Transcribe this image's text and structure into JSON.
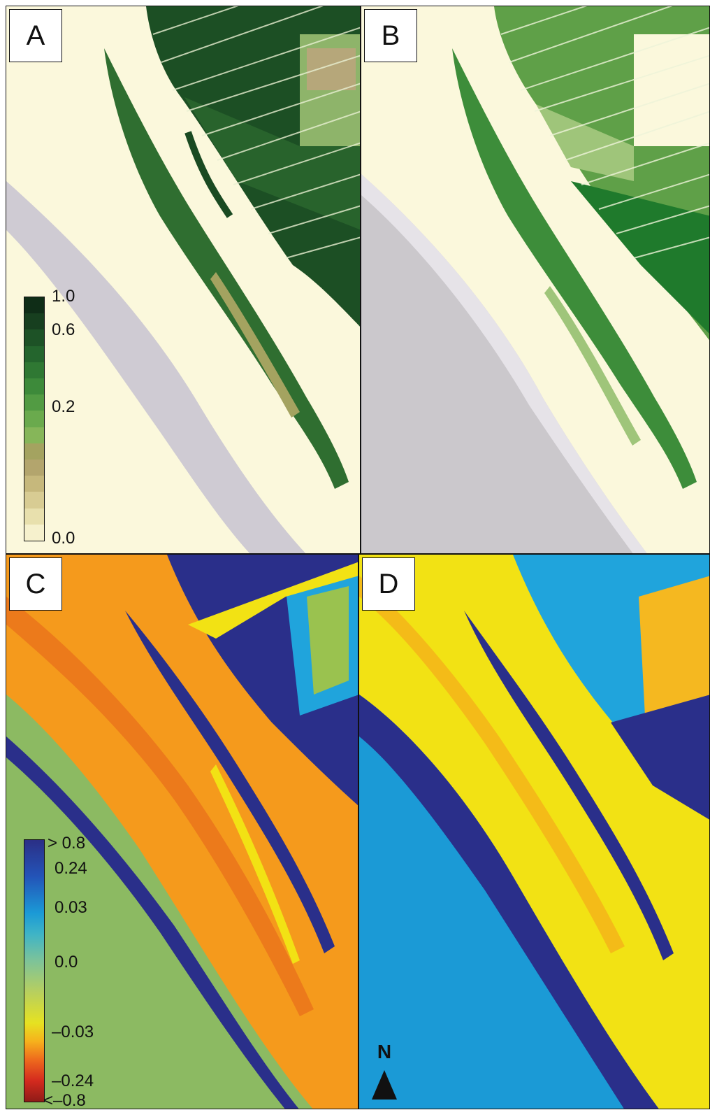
{
  "panels": {
    "a": {
      "label": "A"
    },
    "b": {
      "label": "B"
    },
    "c": {
      "label": "C"
    },
    "d": {
      "label": "D"
    }
  },
  "legend_green": {
    "ticks": [
      "1.0",
      "0.6",
      "0.2",
      "0.0"
    ],
    "colors": [
      "#0f2d17",
      "#173f1f",
      "#1d5226",
      "#24652d",
      "#2f7833",
      "#3d8a3a",
      "#529b43",
      "#6aaa4d",
      "#86b659",
      "#a4a360",
      "#b3a56d",
      "#c6b87c",
      "#d8cc93",
      "#e8e0ad",
      "#f6f1cd"
    ]
  },
  "legend_diff": {
    "ticks": [
      "> 0.8",
      "0.24",
      "0.03",
      "0.0",
      "–0.03",
      "–0.24",
      "<–0.8"
    ],
    "colors": [
      "#2b2f86",
      "#2354b8",
      "#1b9ad6",
      "#3fb4c6",
      "#7cc39a",
      "#b7cf5f",
      "#e6e221",
      "#f6b11c",
      "#ee6a1d",
      "#d42a1e",
      "#8f1b17"
    ]
  },
  "north": {
    "letter": "N"
  },
  "colors": {
    "background_a": "#fbf8dc",
    "tidal_flat_grey": "#cfcbd3",
    "vegetation_dark": "#1a4a22",
    "vegetation_mid": "#3a8a36",
    "diff_yellow": "#f2e214",
    "diff_orange": "#f59a1c",
    "diff_navy": "#2a2f8a",
    "diff_cyan": "#20a4dc",
    "diff_teal_green": "#8cba62"
  }
}
